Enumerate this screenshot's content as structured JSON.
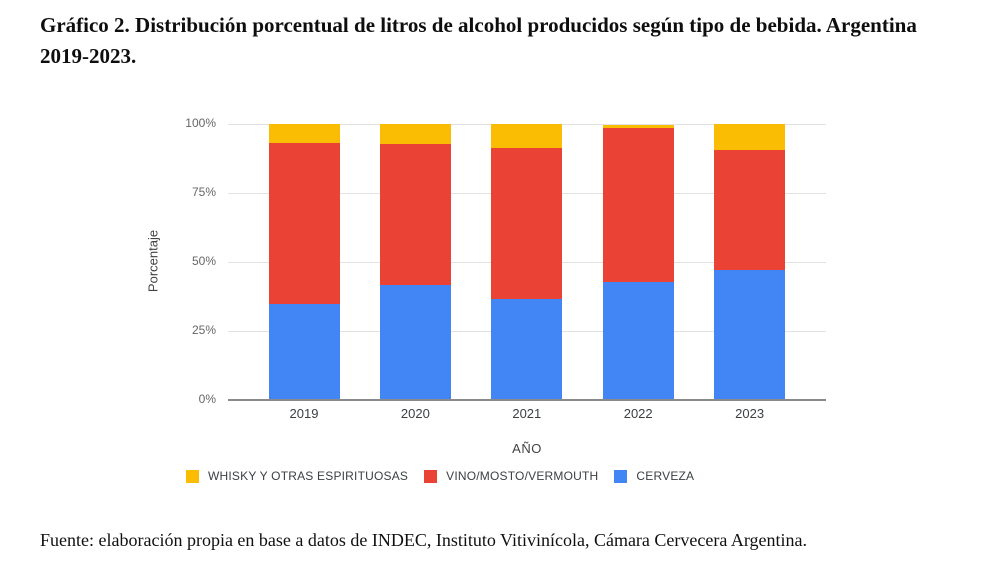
{
  "source_note": "Fuente: elaboración propia en base a datos de INDEC, Instituto Vitivinícola, Cámara Cervecera Argentina.",
  "chart_data": {
    "type": "bar",
    "stacked": true,
    "stacked_unit": "percent",
    "title": "Gráfico 2. Distribución porcentual de litros de alcohol producidos según tipo de bebida. Argentina 2019-2023.",
    "xlabel": "AÑO",
    "ylabel": "Porcentaje",
    "categories": [
      "2019",
      "2020",
      "2021",
      "2022",
      "2023"
    ],
    "series": [
      {
        "name": "CERVEZA",
        "color": "#4285F4",
        "values": [
          34.5,
          41.5,
          36.5,
          42.5,
          47
        ]
      },
      {
        "name": "VINO/MOSTO/VERMOUTH",
        "color": "#EA4335",
        "values": [
          58.5,
          51,
          54.5,
          56,
          43.5
        ]
      },
      {
        "name": "WHISKY Y OTRAS ESPIRITUOSAS",
        "color": "#FBBC04",
        "values": [
          7,
          7.5,
          9,
          1,
          9.5
        ]
      }
    ],
    "legend_display_order": [
      2,
      1,
      0
    ],
    "legend_position": "bottom",
    "ylim": [
      0,
      100
    ],
    "yticks": [
      {
        "label": "0%",
        "value": 0
      },
      {
        "label": "25%",
        "value": 25
      },
      {
        "label": "50%",
        "value": 50
      },
      {
        "label": "75%",
        "value": 75
      },
      {
        "label": "100%",
        "value": 100
      }
    ],
    "grid": true
  }
}
